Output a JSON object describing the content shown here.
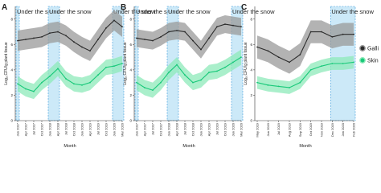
{
  "chart_data": [
    {
      "type": "line",
      "title": "A",
      "x_label": "Month",
      "y_label": "Log₁₀CFU/g plant tissue",
      "categories": [
        "Jan 2017",
        "Apr 2017",
        "Jul 2017",
        "Oct 2017",
        "Jan 2018",
        "Apr 2018",
        "Jul 2018",
        "Oct 2018",
        "Jan 2019",
        "Apr 2019",
        "Jul 2019",
        "Oct 2019",
        "Jan 2020",
        "Mar 2020"
      ],
      "series": [
        {
          "name": "Galli",
          "color": "#2b2b2b",
          "band_color": "#9a9a9a",
          "ci": 0.8,
          "values": [
            6.3,
            6.4,
            6.5,
            6.6,
            6.9,
            7.0,
            6.7,
            6.2,
            5.8,
            5.5,
            6.4,
            7.3,
            7.9,
            7.4
          ]
        },
        {
          "name": "Skin",
          "color": "#19c97a",
          "band_color": "#8eeab9",
          "ci": 0.6,
          "values": [
            2.9,
            2.5,
            2.3,
            3.0,
            3.5,
            4.1,
            3.3,
            2.9,
            2.8,
            3.0,
            3.6,
            4.2,
            4.3,
            4.5
          ]
        }
      ],
      "snow": [
        {
          "label": "Under the snow",
          "from": "Jan 2017",
          "to": "Jan 2017"
        },
        {
          "label": "Under the snow",
          "from": "Jan 2018",
          "to": "Apr 2018"
        },
        {
          "label": "Under the snow",
          "from": "Jan 2020",
          "to": "Mar 2020"
        }
      ],
      "ylim": [
        0,
        9
      ],
      "yticks": [
        0,
        2,
        4,
        6,
        8
      ]
    },
    {
      "type": "line",
      "title": "B",
      "x_label": "Month",
      "y_label": "Log₁₀CFU/g plant tissue",
      "categories": [
        "Jan 2017",
        "Apr 2017",
        "Jul 2017",
        "Oct 2017",
        "Jan 2018",
        "Apr 2018",
        "Jul 2018",
        "Oct 2018",
        "Jan 2019",
        "Apr 2019",
        "Jul 2019",
        "Oct 2019",
        "Jan 2020",
        "Mar 2020"
      ],
      "series": [
        {
          "name": "Galli",
          "color": "#2b2b2b",
          "band_color": "#9a9a9a",
          "ci": 0.7,
          "values": [
            6.5,
            6.4,
            6.3,
            6.6,
            7.0,
            7.1,
            7.0,
            6.3,
            5.6,
            6.5,
            7.4,
            7.6,
            7.5,
            7.4
          ]
        },
        {
          "name": "Skin",
          "color": "#19c97a",
          "band_color": "#8eeab9",
          "ci": 0.6,
          "values": [
            3.0,
            2.6,
            2.4,
            3.0,
            3.8,
            4.4,
            3.6,
            3.0,
            3.2,
            3.8,
            3.9,
            4.2,
            4.6,
            5.0
          ]
        }
      ],
      "snow": [
        {
          "label": "Under the snow",
          "from": "Jan 2017",
          "to": "Jan 2017"
        },
        {
          "label": "Under the snow",
          "from": "Jan 2018",
          "to": "Apr 2018"
        },
        {
          "label": "Under the snow",
          "from": "Jan 2020",
          "to": "Mar 2020"
        }
      ],
      "ylim": [
        0,
        9
      ],
      "yticks": [
        0,
        2,
        4,
        6,
        8
      ]
    },
    {
      "type": "line",
      "title": "C",
      "x_label": "Month",
      "y_label": "Log₁₀CFU/g plant tissue",
      "legend": "right",
      "categories": [
        "May 2019",
        "Jun 2019",
        "Jul 2019",
        "Aug 2019",
        "Sep 2019",
        "Oct 2019",
        "Nov 2019",
        "Dec 2019",
        "Jan 2020",
        "Feb 2020"
      ],
      "series": [
        {
          "name": "Galli",
          "color": "#2b2b2b",
          "band_color": "#9a9a9a",
          "ci": 0.9,
          "values": [
            5.8,
            5.5,
            5.0,
            4.6,
            5.2,
            7.0,
            7.0,
            6.6,
            6.8,
            6.8
          ]
        },
        {
          "name": "Skin",
          "color": "#19c97a",
          "band_color": "#8eeab9",
          "ci": 0.5,
          "values": [
            3.0,
            2.8,
            2.7,
            2.6,
            3.0,
            4.0,
            4.3,
            4.5,
            4.5,
            4.6
          ]
        }
      ],
      "snow": [
        {
          "label": "Under the snow",
          "from": "Dec 2019",
          "to": "Feb 2020"
        }
      ],
      "ylim": [
        0,
        9
      ],
      "yticks": [
        0,
        2,
        4,
        6,
        8
      ]
    }
  ]
}
